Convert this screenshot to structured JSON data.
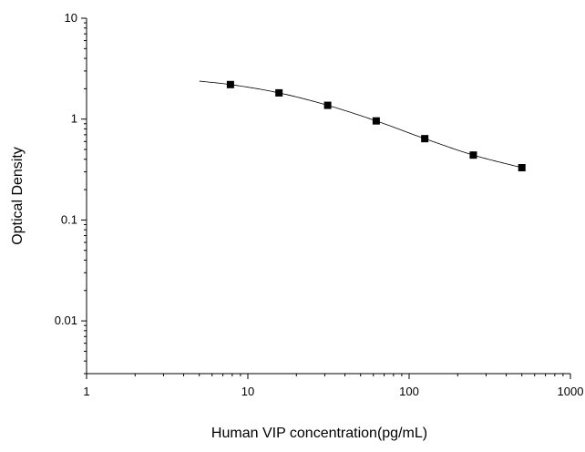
{
  "chart_data": {
    "type": "scatter",
    "title": "",
    "xlabel": "Human VIP concentration(pg/mL)",
    "ylabel": "Optical Density",
    "x_scale": "log",
    "y_scale": "log",
    "xlim": [
      1,
      1000
    ],
    "ylim": [
      0.003,
      10
    ],
    "x_ticks": [
      1,
      10,
      100,
      1000
    ],
    "x_tick_labels": [
      "1",
      "10",
      "100",
      "1000"
    ],
    "y_ticks": [
      0.01,
      0.1,
      1,
      10
    ],
    "y_tick_labels": [
      "0.01",
      "0.1",
      "1",
      "10"
    ],
    "grid": false,
    "legend": "none",
    "series": [
      {
        "x": [
          7.8,
          15.6,
          31.25,
          62.5,
          125,
          250,
          500
        ],
        "y": [
          2.2,
          1.82,
          1.37,
          0.96,
          0.64,
          0.44,
          0.33
        ],
        "marker": "square",
        "color": "#000000"
      }
    ],
    "fit_curve": {
      "x": [
        5,
        7.8,
        15.6,
        31.25,
        62.5,
        125,
        250,
        500
      ],
      "y": [
        2.38,
        2.2,
        1.82,
        1.37,
        0.96,
        0.64,
        0.44,
        0.33
      ],
      "color": "#000000"
    }
  }
}
